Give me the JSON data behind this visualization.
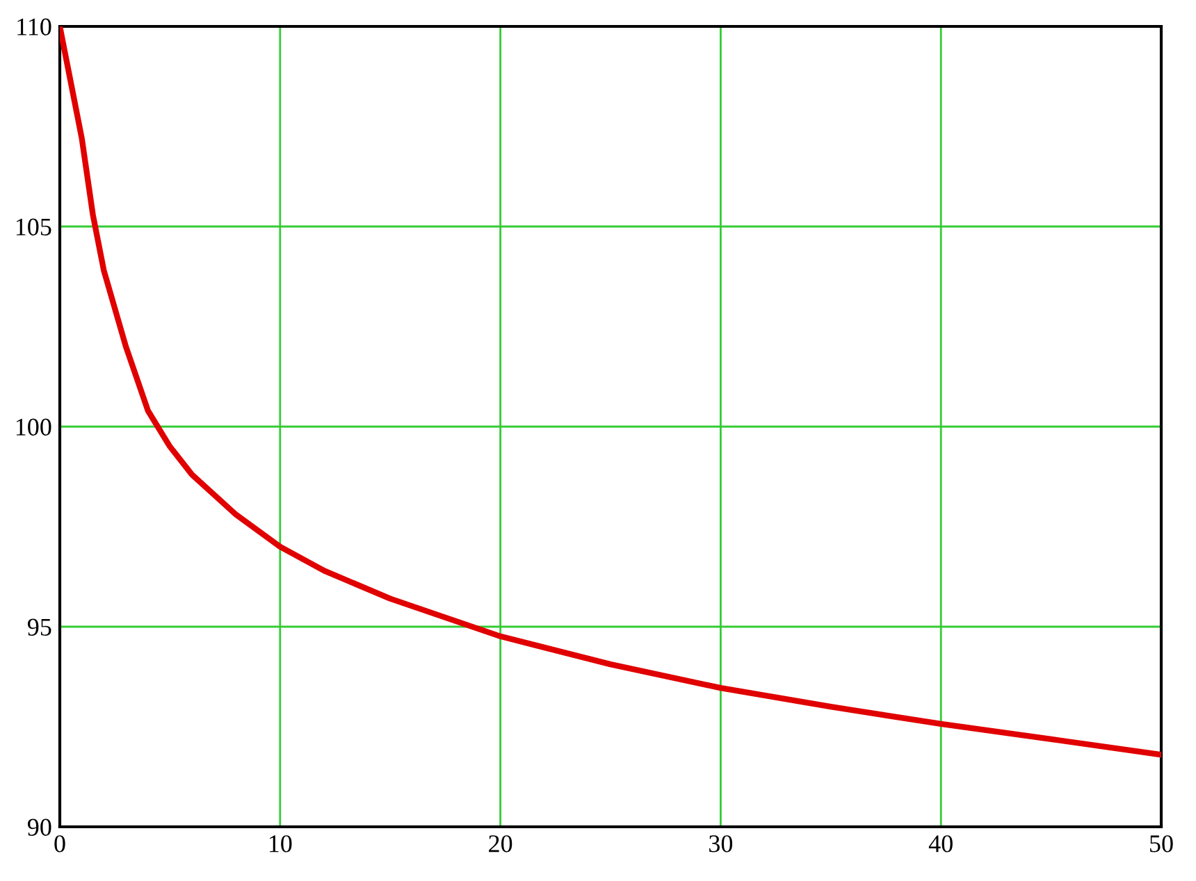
{
  "chart_data": {
    "type": "line",
    "x": [
      0,
      0.5,
      1,
      1.5,
      2,
      3,
      4,
      5,
      6,
      8,
      10,
      12,
      15,
      20,
      25,
      30,
      35,
      40,
      45,
      50
    ],
    "series": [
      {
        "color": "#e00000",
        "values": [
          110,
          108.6,
          107.2,
          105.3,
          103.9,
          102.0,
          100.4,
          99.5,
          98.8,
          97.8,
          97.0,
          96.4,
          95.7,
          94.76,
          94.06,
          93.47,
          93.0,
          92.57,
          92.19,
          91.8
        ]
      }
    ],
    "xlim": [
      0,
      50
    ],
    "xticks": [
      0,
      10,
      20,
      30,
      40,
      50
    ],
    "ylim": [
      90,
      110
    ],
    "yticks": [
      90,
      95,
      100,
      105,
      110
    ],
    "grid": true,
    "legend": false,
    "marker": "none",
    "line_style": "solid"
  }
}
